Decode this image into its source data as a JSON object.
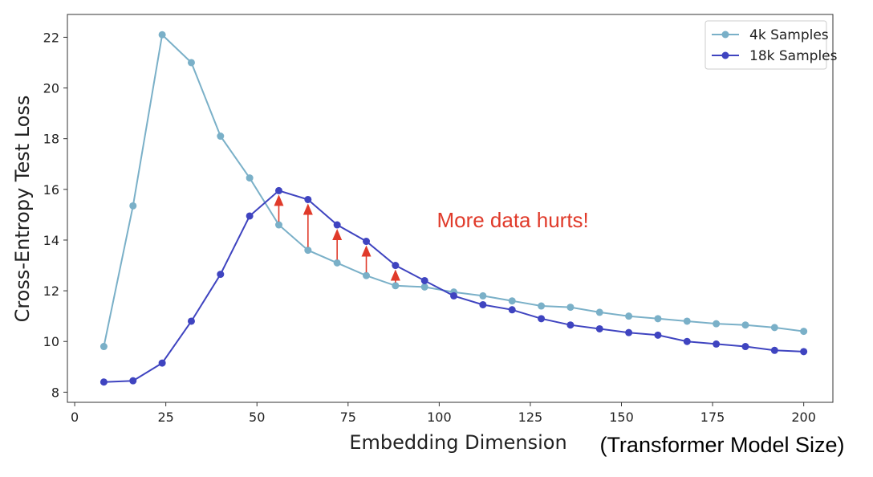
{
  "chart_data": {
    "type": "line",
    "xlabel": "Embedding Dimension",
    "xlabel_note": "(Transformer Model Size)",
    "ylabel": "Cross-Entropy Test Loss",
    "xlim": [
      -2,
      208
    ],
    "ylim": [
      7.6,
      22.9
    ],
    "xticks": [
      0,
      25,
      50,
      75,
      100,
      125,
      150,
      175,
      200
    ],
    "yticks": [
      8,
      10,
      12,
      14,
      16,
      18,
      20,
      22
    ],
    "x": [
      8,
      16,
      24,
      32,
      40,
      48,
      56,
      64,
      72,
      80,
      88,
      96,
      104,
      112,
      120,
      128,
      136,
      144,
      152,
      160,
      168,
      176,
      184,
      192,
      200
    ],
    "series": [
      {
        "name": "4k Samples",
        "color": "#7ab0c8",
        "values": [
          9.8,
          15.35,
          22.1,
          21.0,
          18.1,
          16.45,
          14.6,
          13.6,
          13.1,
          12.6,
          12.2,
          12.15,
          11.95,
          11.8,
          11.6,
          11.4,
          11.35,
          11.15,
          11.0,
          10.9,
          10.8,
          10.7,
          10.65,
          10.55,
          10.4
        ]
      },
      {
        "name": "18k Samples",
        "color": "#3f44c0",
        "values": [
          8.4,
          8.45,
          9.15,
          10.8,
          12.65,
          14.95,
          15.95,
          15.6,
          14.6,
          13.95,
          13.0,
          12.4,
          11.8,
          11.45,
          11.25,
          10.9,
          10.65,
          10.5,
          10.35,
          10.25,
          10.0,
          9.9,
          9.8,
          9.65,
          9.6
        ]
      }
    ],
    "arrows": {
      "color": "#e03a2a",
      "x": [
        56,
        64,
        72,
        80,
        88
      ]
    },
    "annotation": {
      "text": "More data hurts!",
      "x": 102,
      "y": 14.5
    },
    "legend_position": "top-right"
  }
}
